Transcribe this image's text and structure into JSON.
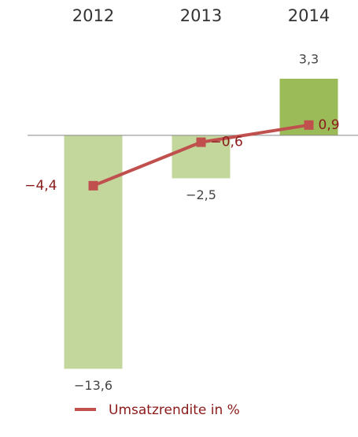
{
  "chart_data": {
    "type": "bar",
    "categories": [
      "2012",
      "2013",
      "2014"
    ],
    "ylim": [
      -14.5,
      5.5
    ],
    "y2lim": [
      -21.75,
      8.25
    ],
    "series": [
      {
        "type": "bar",
        "values": [
          -13.6,
          -2.5,
          3.3
        ],
        "value_labels": [
          "−13,6",
          "−2,5",
          "3,3"
        ],
        "colors": [
          "#c3d69b",
          "#c3d69b",
          "#9bbb59"
        ]
      },
      {
        "type": "line",
        "axis": "y2",
        "name": "Umsatzrendite in %",
        "color": "#c0504d",
        "values": [
          -4.4,
          -0.6,
          0.9
        ],
        "value_labels": [
          "−4,4",
          "−0,6",
          "0,9"
        ]
      }
    ]
  }
}
